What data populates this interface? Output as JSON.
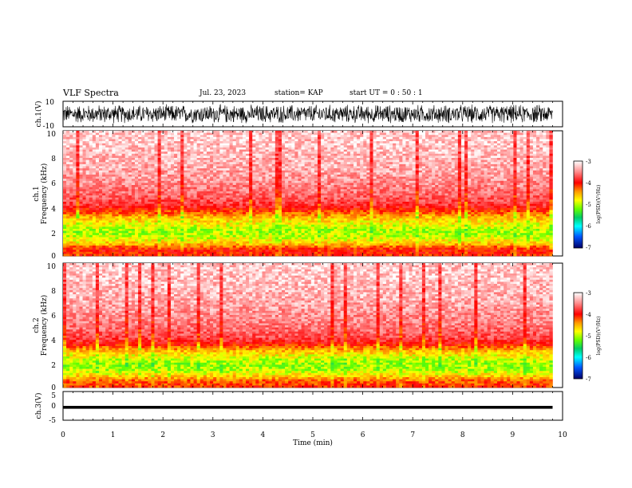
{
  "header": {
    "title": "VLF Spectra",
    "date": "Jul. 23, 2023",
    "station": "station= KAP",
    "start": "start UT = 0 : 50 : 1"
  },
  "chart_data": [
    {
      "type": "line",
      "panel": "ch1-waveform",
      "ylabel": "ch.1(V)",
      "ylim": [
        -10,
        10
      ],
      "yticks": [
        "10",
        "-10"
      ],
      "xlim": [
        0,
        10
      ],
      "x_extent_min": 9.8,
      "description_values": {
        "amplitude_range": [
          -8,
          8
        ]
      }
    },
    {
      "type": "heatmap",
      "panel": "ch1-spectrogram",
      "ylabel": "ch.1\nFrequency (kHz)",
      "ylabel_lines": [
        "ch.1",
        "Frequency (kHz)"
      ],
      "ylim": [
        0,
        10
      ],
      "yticks": [
        "0",
        "2",
        "4",
        "6",
        "8",
        "10"
      ],
      "xlim": [
        0,
        10
      ],
      "x_extent_min": 9.8,
      "colorbar": {
        "label": "log(PSD)(V²/Hz)",
        "range": [
          -7,
          -3
        ],
        "ticks": [
          "-3",
          "-4",
          "-5",
          "-6",
          "-7"
        ]
      },
      "profile_freq_khz": [
        0,
        0.5,
        1.0,
        1.5,
        2.0,
        2.5,
        3.0,
        3.5,
        4.0,
        5.0,
        6.0,
        7.0,
        8.0,
        9.0,
        10.0
      ],
      "profile_logpsd": [
        -4.1,
        -4.0,
        -4.6,
        -4.9,
        -5.0,
        -4.8,
        -4.6,
        -4.2,
        -3.8,
        -3.55,
        -3.4,
        -3.3,
        -3.25,
        -3.2,
        -3.2
      ]
    },
    {
      "type": "heatmap",
      "panel": "ch2-spectrogram",
      "ylabel": "ch.2\nFrequency (kHz)",
      "ylabel_lines": [
        "ch.2",
        "Frequency (kHz)"
      ],
      "ylim": [
        0,
        10
      ],
      "yticks": [
        "0",
        "2",
        "4",
        "6",
        "8",
        "10"
      ],
      "xlim": [
        0,
        10
      ],
      "x_extent_min": 9.8,
      "colorbar": {
        "label": "log(PSD)(V²/Hz)",
        "range": [
          -7,
          -3
        ],
        "ticks": [
          "-3",
          "-4",
          "-5",
          "-6",
          "-7"
        ]
      },
      "profile_freq_khz": [
        0,
        0.5,
        1.0,
        1.5,
        2.0,
        2.5,
        3.0,
        3.5,
        4.0,
        5.0,
        6.0,
        7.0,
        8.0,
        9.0,
        10.0
      ],
      "profile_logpsd": [
        -4.1,
        -4.2,
        -4.7,
        -5.0,
        -5.0,
        -4.8,
        -4.5,
        -4.0,
        -3.7,
        -3.5,
        -3.4,
        -3.3,
        -3.25,
        -3.2,
        -3.2
      ]
    },
    {
      "type": "line",
      "panel": "ch3-waveform",
      "ylabel": "ch.3(V)",
      "ylim": [
        -5,
        5
      ],
      "yticks": [
        "5",
        "0",
        "-5"
      ],
      "xlim": [
        0,
        10
      ],
      "x_extent_min": 9.8,
      "description_values": {
        "amplitude_range": [
          -1,
          0
        ]
      }
    }
  ],
  "xaxis": {
    "label": "Time (min)",
    "ticks": [
      "0",
      "1",
      "2",
      "3",
      "4",
      "5",
      "6",
      "7",
      "8",
      "9",
      "10"
    ]
  }
}
